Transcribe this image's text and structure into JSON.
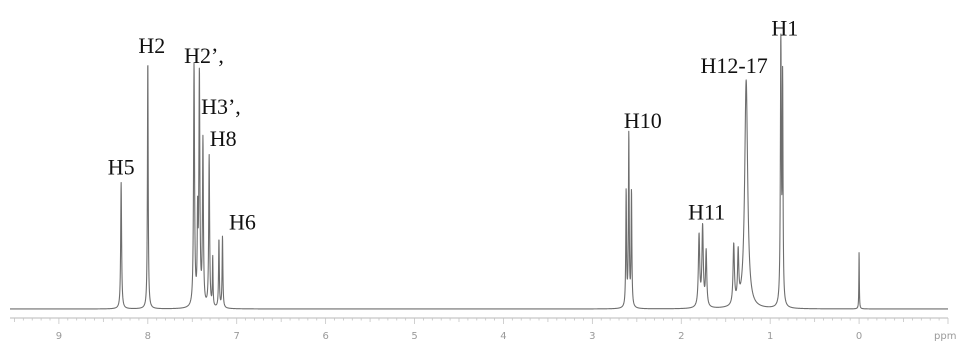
{
  "chart_data": {
    "type": "line",
    "title": "",
    "xlabel": "ppm",
    "ylabel": "",
    "xlim": [
      9.55,
      -1.0
    ],
    "x_reversed": true,
    "ylim": [
      0,
      100
    ],
    "grid": false,
    "x_ticks": [
      9,
      8,
      7,
      6,
      5,
      4,
      3,
      2,
      1,
      0
    ],
    "peaks": [
      {
        "label": "H5",
        "ppm": 8.3,
        "height": 46,
        "width": 0.012
      },
      {
        "label": "H2",
        "ppm": 8.0,
        "height": 91,
        "width": 0.01
      },
      {
        "label": "H2’,",
        "ppm": 7.48,
        "height": 88,
        "width": 0.013
      },
      {
        "label": "",
        "ppm": 7.44,
        "height": 30,
        "width": 0.01
      },
      {
        "label": "",
        "ppm": 7.42,
        "height": 84,
        "width": 0.013
      },
      {
        "label": "H3’,",
        "ppm": 7.38,
        "height": 60,
        "width": 0.012
      },
      {
        "label": "H8",
        "ppm": 7.31,
        "height": 55,
        "width": 0.012
      },
      {
        "label": "",
        "ppm": 7.27,
        "height": 18,
        "width": 0.008
      },
      {
        "label": "",
        "ppm": 7.2,
        "height": 25,
        "width": 0.01
      },
      {
        "label": "H6",
        "ppm": 7.16,
        "height": 26,
        "width": 0.01
      },
      {
        "label": "",
        "ppm": 2.62,
        "height": 42,
        "width": 0.01
      },
      {
        "label": "H10",
        "ppm": 2.59,
        "height": 63,
        "width": 0.01
      },
      {
        "label": "",
        "ppm": 2.56,
        "height": 42,
        "width": 0.01
      },
      {
        "label": "",
        "ppm": 1.8,
        "height": 26,
        "width": 0.018
      },
      {
        "label": "H11",
        "ppm": 1.76,
        "height": 29,
        "width": 0.018
      },
      {
        "label": "",
        "ppm": 1.72,
        "height": 20,
        "width": 0.016
      },
      {
        "label": "",
        "ppm": 1.41,
        "height": 22,
        "width": 0.018
      },
      {
        "label": "",
        "ppm": 1.36,
        "height": 18,
        "width": 0.016
      },
      {
        "label": "H12-17",
        "ppm": 1.27,
        "height": 83,
        "width": 0.04
      },
      {
        "label": "H1",
        "ppm": 0.88,
        "height": 98,
        "width": 0.012
      },
      {
        "label": "",
        "ppm": 0.86,
        "height": 80,
        "width": 0.01
      },
      {
        "label": "",
        "ppm": 0.0,
        "height": 21,
        "width": 0.006
      }
    ]
  }
}
